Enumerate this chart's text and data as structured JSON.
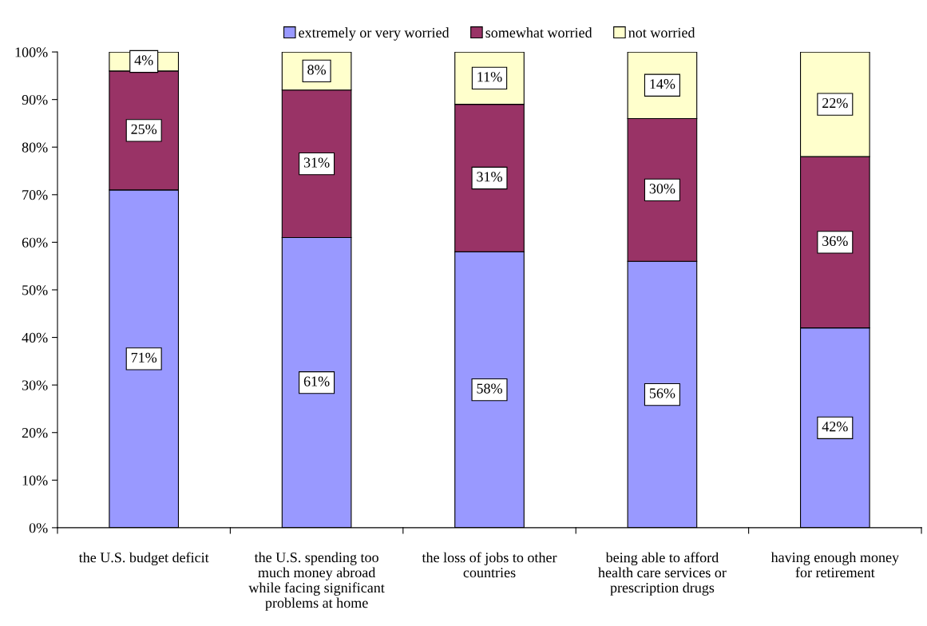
{
  "chart_data": {
    "type": "bar",
    "stacked": true,
    "categories": [
      "the U.S. budget deficit",
      "the U.S. spending too\nmuch money abroad\nwhile facing significant\nproblems at home",
      "the loss of jobs to other\ncountries",
      "being able to afford\nhealth care services or\nprescription drugs",
      "having enough money\nfor retirement"
    ],
    "series": [
      {
        "name": "extremely or very worried",
        "color": "#9999ff",
        "values": [
          71,
          61,
          58,
          56,
          42
        ],
        "value_labels": [
          "71%",
          "61%",
          "58%",
          "56%",
          "42%"
        ]
      },
      {
        "name": "somewhat worried",
        "color": "#993366",
        "values": [
          25,
          31,
          31,
          30,
          36
        ],
        "value_labels": [
          "25%",
          "31%",
          "31%",
          "30%",
          "36%"
        ]
      },
      {
        "name": "not worried",
        "color": "#ffffcc",
        "values": [
          4,
          8,
          11,
          14,
          22
        ],
        "value_labels": [
          "4%",
          "8%",
          "11%",
          "14%",
          "22%"
        ]
      }
    ],
    "ylim": [
      0,
      100
    ],
    "yticks": [
      {
        "value": 0,
        "label": "0%"
      },
      {
        "value": 10,
        "label": "10%"
      },
      {
        "value": 20,
        "label": "20%"
      },
      {
        "value": 30,
        "label": "30%"
      },
      {
        "value": 40,
        "label": "40%"
      },
      {
        "value": 50,
        "label": "50%"
      },
      {
        "value": 60,
        "label": "60%"
      },
      {
        "value": 70,
        "label": "70%"
      },
      {
        "value": 80,
        "label": "80%"
      },
      {
        "value": 90,
        "label": "90%"
      },
      {
        "value": 100,
        "label": "100%"
      }
    ],
    "legend": "top",
    "grid": false
  }
}
